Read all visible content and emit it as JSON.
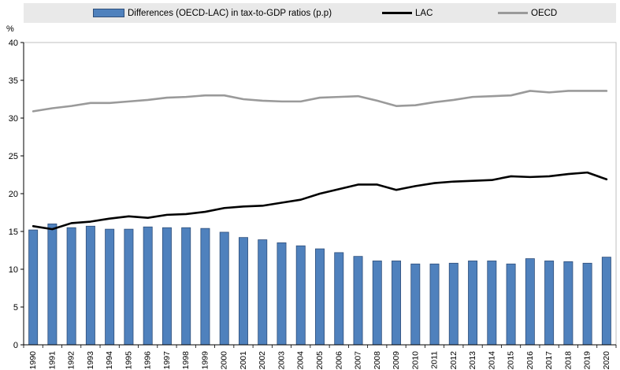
{
  "chart_data": {
    "type": "bar",
    "ylabel": "%",
    "ylim": [
      0,
      40
    ],
    "yticks": [
      0,
      5,
      10,
      15,
      20,
      25,
      30,
      35,
      40
    ],
    "grid": false,
    "legend_position": "top",
    "categories": [
      "1990",
      "1991",
      "1992",
      "1993",
      "1994",
      "1995",
      "1996",
      "1997",
      "1998",
      "1999",
      "2000",
      "2001",
      "2002",
      "2003",
      "2004",
      "2005",
      "2006",
      "2007",
      "2008",
      "2009",
      "2010",
      "2011",
      "2012",
      "2013",
      "2014",
      "2015",
      "2016",
      "2017",
      "2018",
      "2019",
      "2020"
    ],
    "series": [
      {
        "name": "Differences (OECD-LAC) in tax-to-GDP ratios (p.p)",
        "kind": "bar",
        "color": "#4f81bd",
        "values": [
          15.2,
          16.0,
          15.5,
          15.7,
          15.3,
          15.3,
          15.6,
          15.5,
          15.5,
          15.4,
          14.9,
          14.2,
          13.9,
          13.5,
          13.1,
          12.7,
          12.2,
          11.7,
          11.1,
          11.1,
          10.7,
          10.7,
          10.8,
          11.1,
          11.1,
          10.7,
          11.4,
          11.1,
          11.0,
          10.8,
          11.6
        ]
      },
      {
        "name": "LAC",
        "kind": "line",
        "color": "#000000",
        "values": [
          15.7,
          15.3,
          16.1,
          16.3,
          16.7,
          17.0,
          16.8,
          17.2,
          17.3,
          17.6,
          18.1,
          18.3,
          18.4,
          18.8,
          19.2,
          20.0,
          20.6,
          21.2,
          21.2,
          20.5,
          21.0,
          21.4,
          21.6,
          21.7,
          21.8,
          22.3,
          22.2,
          22.3,
          22.6,
          22.8,
          21.9
        ]
      },
      {
        "name": "OECD",
        "kind": "line",
        "color": "#9a9a9a",
        "values": [
          30.9,
          31.3,
          31.6,
          32.0,
          32.0,
          32.2,
          32.4,
          32.7,
          32.8,
          33.0,
          33.0,
          32.5,
          32.3,
          32.2,
          32.2,
          32.7,
          32.8,
          32.9,
          32.3,
          31.6,
          31.7,
          32.1,
          32.4,
          32.8,
          32.9,
          33.0,
          33.6,
          33.4,
          33.6,
          33.6,
          33.6
        ]
      }
    ]
  }
}
